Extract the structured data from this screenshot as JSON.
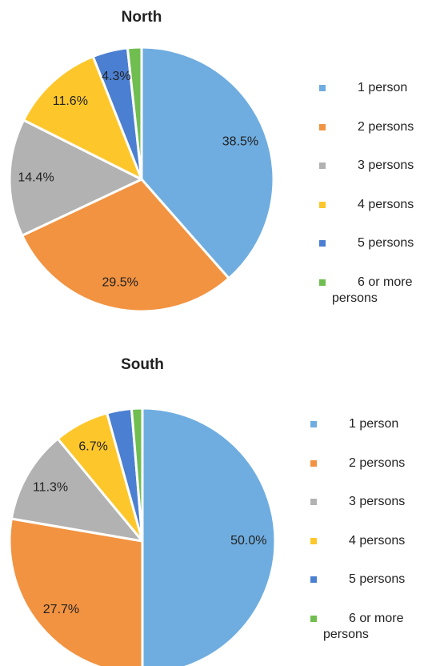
{
  "chart_data": [
    {
      "type": "pie",
      "title": "North",
      "categories": [
        "1 person",
        "2 persons",
        "3 persons",
        "4 persons",
        "5 persons",
        "6 or more persons"
      ],
      "values": [
        38.5,
        29.5,
        14.4,
        11.6,
        4.3,
        1.7
      ],
      "value_labels": [
        "38.5%",
        "29.5%",
        "14.4%",
        "11.6%",
        "4.3%",
        null
      ],
      "colors": [
        "#6fade0",
        "#f29341",
        "#b2b2b2",
        "#fdc72c",
        "#4b7fd1",
        "#70bd50"
      ]
    },
    {
      "type": "pie",
      "title": "South",
      "categories": [
        "1 person",
        "2 persons",
        "3 persons",
        "4 persons",
        "5 persons",
        "6 or more persons"
      ],
      "values": [
        50.0,
        27.7,
        11.3,
        6.7,
        3.0,
        1.3
      ],
      "value_labels": [
        "50.0%",
        "27.7%",
        "11.3%",
        "6.7%",
        null,
        null
      ],
      "colors": [
        "#6fade0",
        "#f29341",
        "#b2b2b2",
        "#fdc72c",
        "#4b7fd1",
        "#70bd50"
      ]
    }
  ]
}
